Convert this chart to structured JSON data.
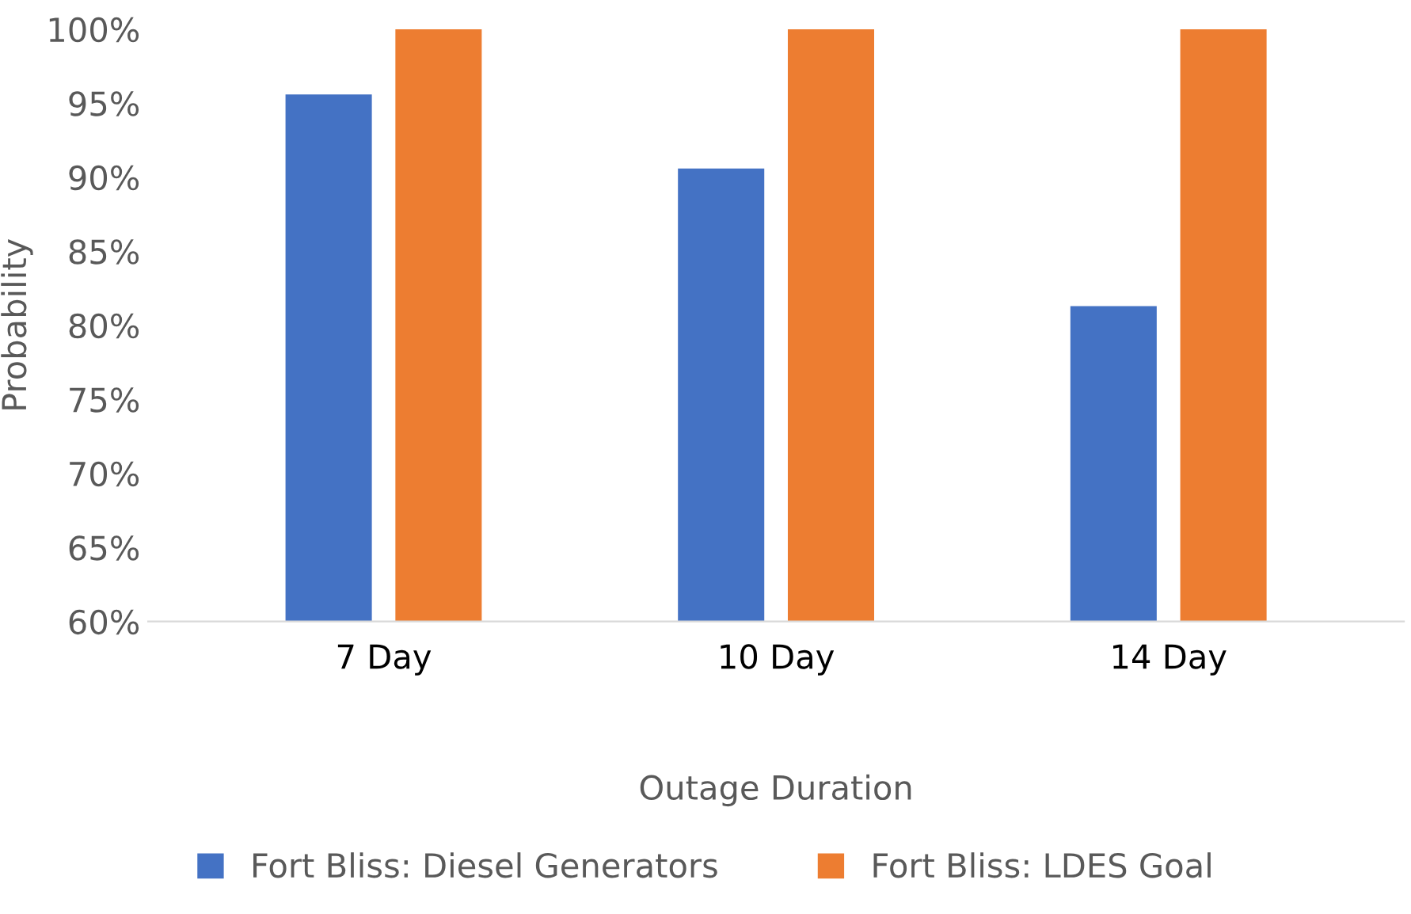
{
  "chart_data": {
    "type": "bar",
    "xlabel": "Outage Duration",
    "ylabel": "Probability",
    "categories": [
      "7 Day",
      "10 Day",
      "14 Day"
    ],
    "series": [
      {
        "name": "Fort Bliss: Diesel Generators",
        "color": "#4472c4",
        "values": [
          95.6,
          90.6,
          81.3
        ]
      },
      {
        "name": "Fort Bliss: LDES Goal",
        "color": "#ed7d31",
        "values": [
          100,
          100,
          100
        ]
      }
    ],
    "ylim": [
      60,
      100
    ],
    "yticks": [
      {
        "value": 60,
        "label": "60%"
      },
      {
        "value": 65,
        "label": "65%"
      },
      {
        "value": 70,
        "label": "70%"
      },
      {
        "value": 75,
        "label": "75%"
      },
      {
        "value": 80,
        "label": "80%"
      },
      {
        "value": 85,
        "label": "85%"
      },
      {
        "value": 90,
        "label": "90%"
      },
      {
        "value": 95,
        "label": "95%"
      },
      {
        "value": 100,
        "label": "100%"
      }
    ],
    "grid": false,
    "legend": "bottom"
  }
}
